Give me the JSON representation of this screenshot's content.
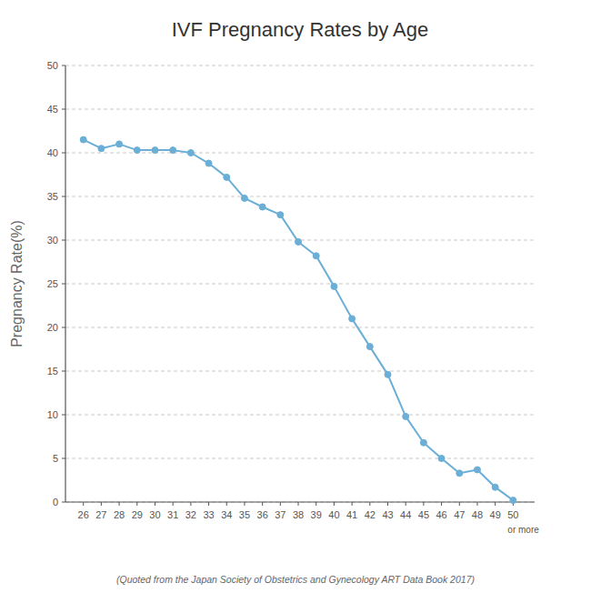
{
  "chart_data": {
    "type": "line",
    "title": "IVF Pregnancy Rates by Age",
    "ylabel": "Pregnancy Rate(%)",
    "footnote": "(Quoted from the Japan Society of Obstetrics and Gynecology ART Data Book 2017)",
    "annotation": "or more",
    "x": [
      26,
      27,
      28,
      29,
      30,
      31,
      32,
      33,
      34,
      35,
      36,
      37,
      38,
      39,
      40,
      41,
      42,
      43,
      44,
      45,
      46,
      47,
      48,
      49,
      50
    ],
    "values": [
      41.5,
      40.5,
      41.0,
      40.3,
      40.3,
      40.3,
      40.0,
      38.8,
      37.2,
      34.8,
      33.8,
      32.9,
      29.8,
      28.2,
      24.7,
      21.0,
      17.8,
      14.6,
      9.8,
      6.8,
      5.0,
      3.3,
      3.7,
      1.7,
      0.2
    ],
    "color": "#6baed6",
    "marker": "circle",
    "xlim": [
      25.0,
      51.2
    ],
    "xticks": [
      26,
      27,
      28,
      29,
      30,
      31,
      32,
      33,
      34,
      35,
      36,
      37,
      38,
      39,
      40,
      41,
      42,
      43,
      44,
      45,
      46,
      47,
      48,
      49,
      50
    ],
    "ylim": [
      0,
      50
    ],
    "yticks": [
      0,
      5,
      10,
      15,
      20,
      25,
      30,
      35,
      40,
      45,
      50
    ],
    "grid": true
  }
}
